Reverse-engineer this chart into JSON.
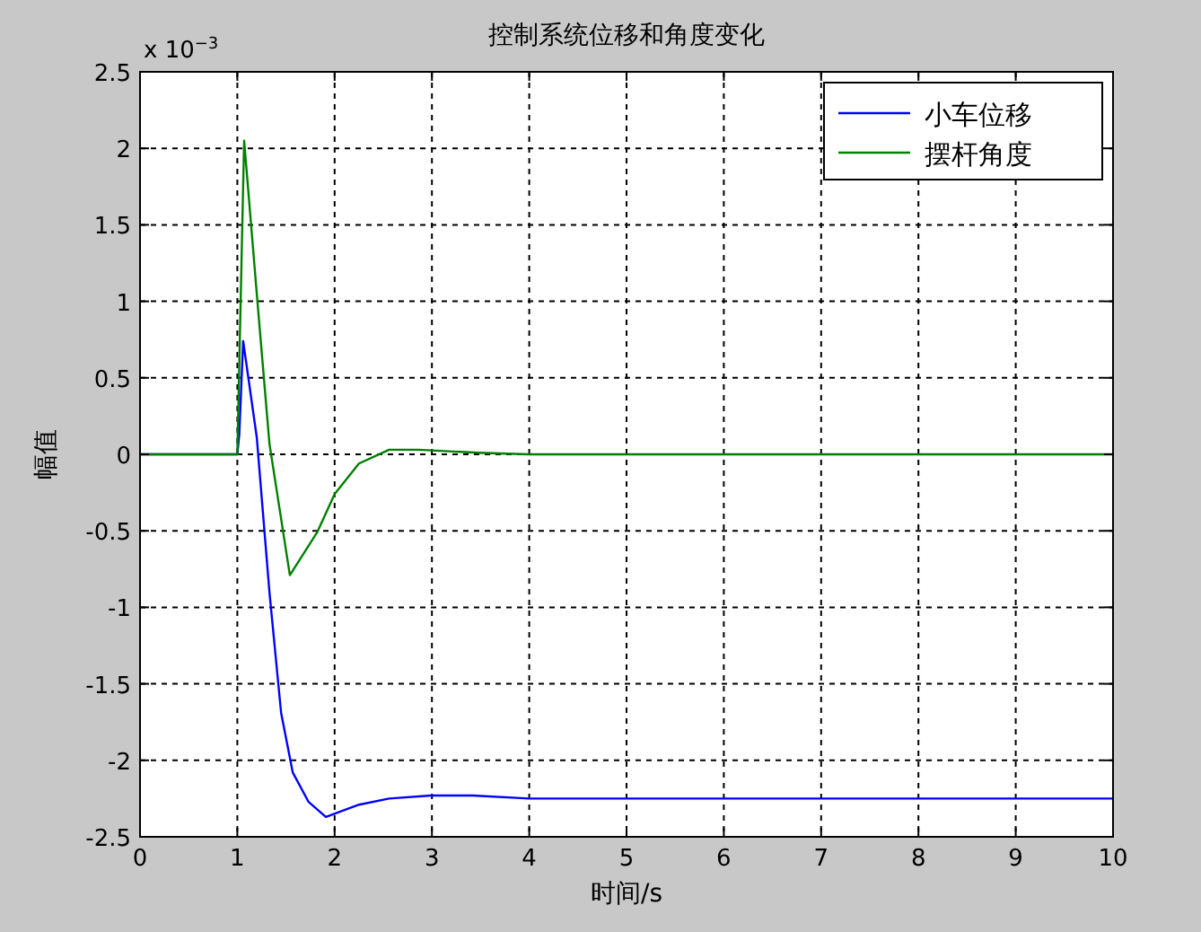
{
  "chart_data": {
    "type": "line",
    "title": "控制系统位移和角度变化",
    "xlabel": "时间/s",
    "ylabel": "幅值",
    "annotations": [
      "x 10$^{−3}$"
    ],
    "xlim": [
      0,
      10
    ],
    "xticks": [
      0,
      1,
      2,
      3,
      4,
      5,
      6,
      7,
      8,
      9,
      10
    ],
    "ylim": [
      -2.5,
      2.5
    ],
    "yticks": [
      -2.5,
      -2,
      -1.5,
      -1,
      -0.5,
      0,
      0.5,
      1,
      1.5,
      2,
      2.5
    ],
    "grid": true,
    "legend": "top right",
    "line_style": "solid",
    "series": [
      {
        "name": "小车位移",
        "color": "#0000ff",
        "x": [
          0,
          1,
          1.02,
          1.06,
          1.2,
          1.33,
          1.45,
          1.57,
          1.73,
          1.91,
          2.25,
          2.56,
          2.99,
          3.42,
          4,
          10
        ],
        "values": [
          0,
          0,
          0.13,
          0.74,
          0.11,
          -0.9,
          -1.69,
          -2.08,
          -2.27,
          -2.37,
          -2.29,
          -2.25,
          -2.23,
          -2.23,
          -2.25,
          -2.25
        ]
      },
      {
        "name": "摆杆角度",
        "color": "#008000",
        "x": [
          0,
          1,
          1.07,
          1.2,
          1.33,
          1.54,
          1.82,
          2.0,
          2.25,
          2.56,
          2.86,
          3.48,
          4,
          10
        ],
        "values": [
          0,
          0,
          2.05,
          1.05,
          0.07,
          -0.79,
          -0.51,
          -0.26,
          -0.06,
          0.03,
          0.03,
          0.01,
          0,
          0
        ]
      }
    ]
  }
}
